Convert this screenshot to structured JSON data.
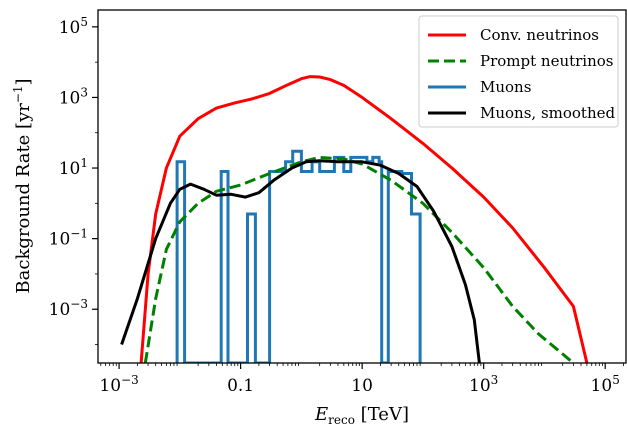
{
  "chart_data": {
    "type": "line",
    "title": "",
    "xlabel": {
      "main": "E",
      "sub": "reco",
      "rest": " [TeV]"
    },
    "ylabel": {
      "main": "Background Rate [yr",
      "sup": "−1",
      "rest": "]"
    },
    "xscale": "log",
    "yscale": "log",
    "xlim": [
      0.00045,
      220000
    ],
    "ylim": [
      3e-05,
      300000
    ],
    "legend_position": "top-right",
    "grid": false,
    "x_ticks": [
      {
        "value": 0.001,
        "base": "10",
        "exp": "−3"
      },
      {
        "value": 0.1,
        "label": "0.1"
      },
      {
        "value": 10,
        "label": "10"
      },
      {
        "value": 1000,
        "base": "10",
        "exp": "3"
      },
      {
        "value": 100000,
        "base": "10",
        "exp": "5"
      }
    ],
    "y_ticks": [
      {
        "value": 0.001,
        "base": "10",
        "exp": "−3"
      },
      {
        "value": 0.1,
        "base": "10",
        "exp": "−1"
      },
      {
        "value": 10,
        "base": "10",
        "exp": "1"
      },
      {
        "value": 1000,
        "base": "10",
        "exp": "3"
      },
      {
        "value": 100000,
        "base": "10",
        "exp": "5"
      }
    ],
    "series": [
      {
        "name": "Conv. neutrinos",
        "color": "#ff0000",
        "style": "solid",
        "points": [
          [
            0.0023,
            3e-05
          ],
          [
            0.003,
            0.01
          ],
          [
            0.004,
            0.5
          ],
          [
            0.006,
            10
          ],
          [
            0.01,
            80
          ],
          [
            0.02,
            250
          ],
          [
            0.04,
            500
          ],
          [
            0.08,
            700
          ],
          [
            0.15,
            900
          ],
          [
            0.3,
            1300
          ],
          [
            0.6,
            2300
          ],
          [
            1,
            3400
          ],
          [
            1.4,
            3900
          ],
          [
            2,
            3800
          ],
          [
            3,
            3200
          ],
          [
            5,
            2200
          ],
          [
            10,
            1000
          ],
          [
            30,
            250
          ],
          [
            100,
            50
          ],
          [
            300,
            10
          ],
          [
            1000,
            1.5
          ],
          [
            3000,
            0.2
          ],
          [
            10000,
            0.015
          ],
          [
            30000,
            0.0012
          ],
          [
            50000,
            3e-05
          ]
        ]
      },
      {
        "name": "Prompt neutrinos",
        "color": "#008000",
        "style": "dashed",
        "points": [
          [
            0.0027,
            3e-05
          ],
          [
            0.004,
            0.002
          ],
          [
            0.006,
            0.05
          ],
          [
            0.01,
            0.3
          ],
          [
            0.02,
            1
          ],
          [
            0.04,
            2.2
          ],
          [
            0.1,
            3.3
          ],
          [
            0.3,
            7
          ],
          [
            1,
            15
          ],
          [
            2,
            20
          ],
          [
            5,
            18
          ],
          [
            10,
            13
          ],
          [
            30,
            4.5
          ],
          [
            100,
            1
          ],
          [
            300,
            0.15
          ],
          [
            1000,
            0.015
          ],
          [
            3000,
            0.0012
          ],
          [
            8000,
            0.0002
          ],
          [
            30000,
            3e-05
          ]
        ]
      },
      {
        "name": "Muons",
        "color": "#1f77b4",
        "style": "steps",
        "points": [
          [
            0.009,
            3e-05
          ],
          [
            0.009,
            15
          ],
          [
            0.012,
            15
          ],
          [
            0.012,
            3e-05
          ],
          [
            0.048,
            3e-05
          ],
          [
            0.048,
            8
          ],
          [
            0.062,
            8
          ],
          [
            0.062,
            3e-05
          ],
          [
            0.13,
            3e-05
          ],
          [
            0.13,
            0.5
          ],
          [
            0.175,
            0.5
          ],
          [
            0.175,
            3e-05
          ],
          [
            0.3,
            3e-05
          ],
          [
            0.3,
            8
          ],
          [
            0.55,
            8
          ],
          [
            0.55,
            15
          ],
          [
            0.72,
            15
          ],
          [
            0.72,
            30
          ],
          [
            1,
            30
          ],
          [
            1,
            8
          ],
          [
            1.5,
            8
          ],
          [
            1.5,
            15
          ],
          [
            2,
            15
          ],
          [
            2,
            8
          ],
          [
            3.5,
            8
          ],
          [
            3.5,
            20
          ],
          [
            5,
            20
          ],
          [
            5,
            8
          ],
          [
            6.5,
            8
          ],
          [
            6.5,
            20
          ],
          [
            12,
            20
          ],
          [
            12,
            15
          ],
          [
            15,
            15
          ],
          [
            15,
            20
          ],
          [
            19,
            20
          ],
          [
            19,
            15
          ],
          [
            21,
            15
          ],
          [
            21,
            3e-05
          ],
          [
            27,
            3e-05
          ],
          [
            27,
            8
          ],
          [
            45,
            8
          ],
          [
            45,
            7
          ],
          [
            65,
            7
          ],
          [
            65,
            0.5
          ],
          [
            90,
            0.5
          ],
          [
            90,
            3e-05
          ]
        ]
      },
      {
        "name": "Muons, smoothed",
        "color": "#000000",
        "style": "solid",
        "points": [
          [
            0.0011,
            0.0001
          ],
          [
            0.002,
            0.002
          ],
          [
            0.004,
            0.1
          ],
          [
            0.007,
            1
          ],
          [
            0.01,
            2.5
          ],
          [
            0.015,
            3.5
          ],
          [
            0.025,
            2.5
          ],
          [
            0.04,
            1.7
          ],
          [
            0.07,
            1.8
          ],
          [
            0.12,
            1.5
          ],
          [
            0.2,
            2
          ],
          [
            0.35,
            4.5
          ],
          [
            0.7,
            10
          ],
          [
            1.2,
            15
          ],
          [
            2,
            16
          ],
          [
            4,
            15
          ],
          [
            10,
            15
          ],
          [
            20,
            12
          ],
          [
            40,
            7
          ],
          [
            80,
            3
          ],
          [
            150,
            0.6
          ],
          [
            300,
            0.06
          ],
          [
            500,
            0.005
          ],
          [
            700,
            0.0005
          ],
          [
            850,
            3e-05
          ]
        ]
      }
    ]
  }
}
